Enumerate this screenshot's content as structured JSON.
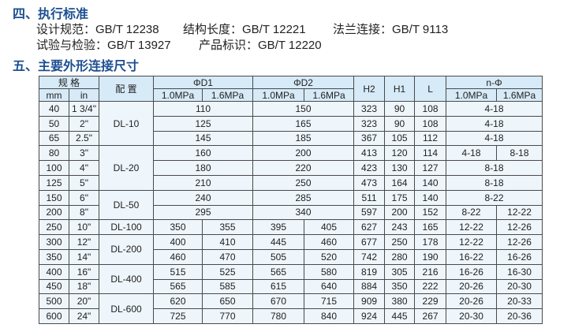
{
  "section4": {
    "title": "四、执行标准",
    "line1": [
      "设计规范：GB/T 12238",
      "结构长度：GB/T 12221",
      "法兰连接：GB/T 9113"
    ],
    "line2": [
      "试验与检验：GB/T 13927",
      "产品标识：GB/T 12220"
    ]
  },
  "section5": {
    "title": "五、主要外形连接尺寸"
  },
  "table": {
    "headers": {
      "spec": "规 格",
      "mm": "mm",
      "in": "in",
      "config": "配 置",
      "d1": "ΦD1",
      "d2": "ΦD2",
      "h2": "H2",
      "h1": "H1",
      "l": "L",
      "n": "n-Φ",
      "p10": "1.0MPa",
      "p16": "1.6MPa"
    },
    "config_groups": [
      {
        "label": "DL-10",
        "rows": 3
      },
      {
        "label": "DL-20",
        "rows": 3
      },
      {
        "label": "DL-50",
        "rows": 2
      },
      {
        "label": "DL-100",
        "rows": 1
      },
      {
        "label": "DL-200",
        "rows": 2
      },
      {
        "label": "DL-400",
        "rows": 2
      },
      {
        "label": "DL-600",
        "rows": 2
      }
    ],
    "rows": [
      {
        "mm": "40",
        "in": "1 3/4\"",
        "d1": [
          "110"
        ],
        "d2": [
          "150"
        ],
        "h2": "323",
        "h1": "90",
        "l": "108",
        "n": [
          "4-18"
        ]
      },
      {
        "mm": "50",
        "in": "2\"",
        "d1": [
          "125"
        ],
        "d2": [
          "165"
        ],
        "h2": "323",
        "h1": "90",
        "l": "108",
        "n": [
          "4-18"
        ]
      },
      {
        "mm": "65",
        "in": "2.5\"",
        "d1": [
          "145"
        ],
        "d2": [
          "185"
        ],
        "h2": "367",
        "h1": "105",
        "l": "112",
        "n": [
          "4-18"
        ]
      },
      {
        "mm": "80",
        "in": "3\"",
        "d1": [
          "160"
        ],
        "d2": [
          "200"
        ],
        "h2": "413",
        "h1": "120",
        "l": "114",
        "n": [
          "4-18",
          "8-18"
        ]
      },
      {
        "mm": "100",
        "in": "4\"",
        "d1": [
          "180"
        ],
        "d2": [
          "220"
        ],
        "h2": "423",
        "h1": "130",
        "l": "127",
        "n": [
          "8-18"
        ]
      },
      {
        "mm": "125",
        "in": "5\"",
        "d1": [
          "210"
        ],
        "d2": [
          "250"
        ],
        "h2": "473",
        "h1": "164",
        "l": "140",
        "n": [
          "8-18"
        ]
      },
      {
        "mm": "150",
        "in": "6\"",
        "d1": [
          "240"
        ],
        "d2": [
          "285"
        ],
        "h2": "511",
        "h1": "175",
        "l": "140",
        "n": [
          "8-22"
        ]
      },
      {
        "mm": "200",
        "in": "8\"",
        "d1": [
          "295"
        ],
        "d2": [
          "340"
        ],
        "h2": "597",
        "h1": "200",
        "l": "152",
        "n": [
          "8-22",
          "12-22"
        ]
      },
      {
        "mm": "250",
        "in": "10\"",
        "d1": [
          "350",
          "355"
        ],
        "d2": [
          "395",
          "405"
        ],
        "h2": "627",
        "h1": "243",
        "l": "165",
        "n": [
          "12-22",
          "12-26"
        ]
      },
      {
        "mm": "300",
        "in": "12\"",
        "d1": [
          "400",
          "410"
        ],
        "d2": [
          "445",
          "460"
        ],
        "h2": "677",
        "h1": "250",
        "l": "178",
        "n": [
          "12-22",
          "12-26"
        ]
      },
      {
        "mm": "350",
        "in": "14\"",
        "d1": [
          "460",
          "470"
        ],
        "d2": [
          "505",
          "520"
        ],
        "h2": "742",
        "h1": "280",
        "l": "190",
        "n": [
          "16-22",
          "16-26"
        ]
      },
      {
        "mm": "400",
        "in": "16\"",
        "d1": [
          "515",
          "525"
        ],
        "d2": [
          "565",
          "580"
        ],
        "h2": "819",
        "h1": "305",
        "l": "216",
        "n": [
          "16-26",
          "16-30"
        ]
      },
      {
        "mm": "450",
        "in": "18\"",
        "d1": [
          "565",
          "585"
        ],
        "d2": [
          "615",
          "640"
        ],
        "h2": "884",
        "h1": "350",
        "l": "222",
        "n": [
          "20-26",
          "20-30"
        ]
      },
      {
        "mm": "500",
        "in": "20\"",
        "d1": [
          "620",
          "650"
        ],
        "d2": [
          "670",
          "715"
        ],
        "h2": "909",
        "h1": "380",
        "l": "229",
        "n": [
          "20-26",
          "20-33"
        ]
      },
      {
        "mm": "600",
        "in": "24\"",
        "d1": [
          "725",
          "770"
        ],
        "d2": [
          "780",
          "840"
        ],
        "h2": "924",
        "h1": "445",
        "l": "267",
        "n": [
          "20-30",
          "20-36"
        ]
      }
    ]
  },
  "colors": {
    "heading": "#1d4f91",
    "header_bg": "#d6eaf8",
    "body_bg": "#eef5fb",
    "border": "#4a4a4a"
  }
}
